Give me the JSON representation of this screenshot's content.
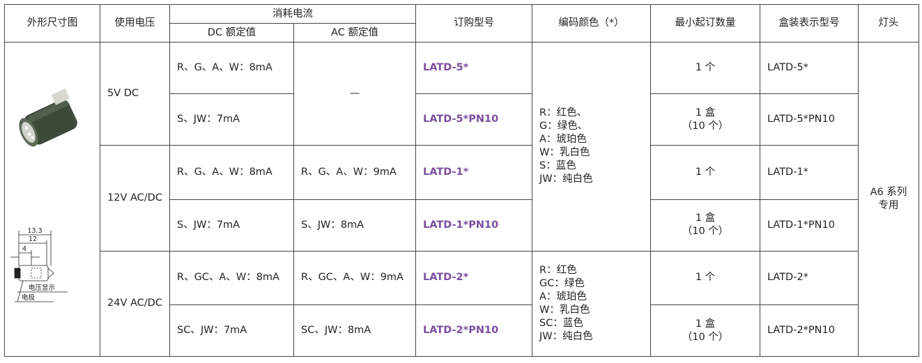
{
  "header": {
    "dimension": "外形尺寸图",
    "voltage": "使用电压",
    "current": "消耗电流",
    "dc": "DC 额定值",
    "ac": "AC 额定值",
    "model": "订购型号",
    "color": "编码颜色（*）",
    "min_qty": "最小起订数量",
    "box_model": "盒装表示型号",
    "base": "灯头"
  },
  "diagram": {
    "dims": [
      "13.3",
      "12",
      "4"
    ],
    "labels": [
      "电压显示",
      "电极"
    ]
  },
  "voltages": [
    "5V DC",
    "12V AC/DC",
    "24V AC/DC"
  ],
  "rows": [
    {
      "dc": "R、G、A、W：8mA",
      "model": "LATD-5*",
      "qty": [
        "1 个"
      ],
      "box": "LATD-5*"
    },
    {
      "dc": "S、JW：7mA",
      "model": "LATD-5*PN10",
      "qty": [
        "1 盒",
        "（10 个）"
      ],
      "box": "LATD-5*PN10"
    },
    {
      "dc": "R、G、A、W：8mA",
      "model": "LATD-1*",
      "qty": [
        "1 个"
      ],
      "box": "LATD-1*"
    },
    {
      "dc": "S、JW：7mA",
      "model": "LATD-1*PN10",
      "qty": [
        "1 盒",
        "（10 个）"
      ],
      "box": "LATD-1*PN10"
    },
    {
      "dc": "R、GC、A、W：8mA",
      "model": "LATD-2*",
      "qty": [
        "1 个"
      ],
      "box": "LATD-2*"
    },
    {
      "dc": "SC、JW：7mA",
      "model": "LATD-2*PN10",
      "qty": [
        "1 盒",
        "（10 个）"
      ],
      "box": "LATD-2*PN10"
    }
  ],
  "ac_current": [
    "—",
    "R、G、A、W：9mA",
    "S、JW：8mA",
    "R、GC、A、W：9mA",
    "SC、JW：8mA"
  ],
  "color_codes": [
    [
      "R：红色、",
      "G：绿色、",
      "A：琥珀色",
      "W：乳白色",
      "S：蓝色",
      "JW：纯白色"
    ],
    [
      "R：红色",
      "GC：绿色",
      "A：琥珀色",
      "W：乳白色",
      "SC：蓝色",
      "JW：纯白色"
    ]
  ],
  "base": [
    "A6 系列",
    "专用"
  ]
}
